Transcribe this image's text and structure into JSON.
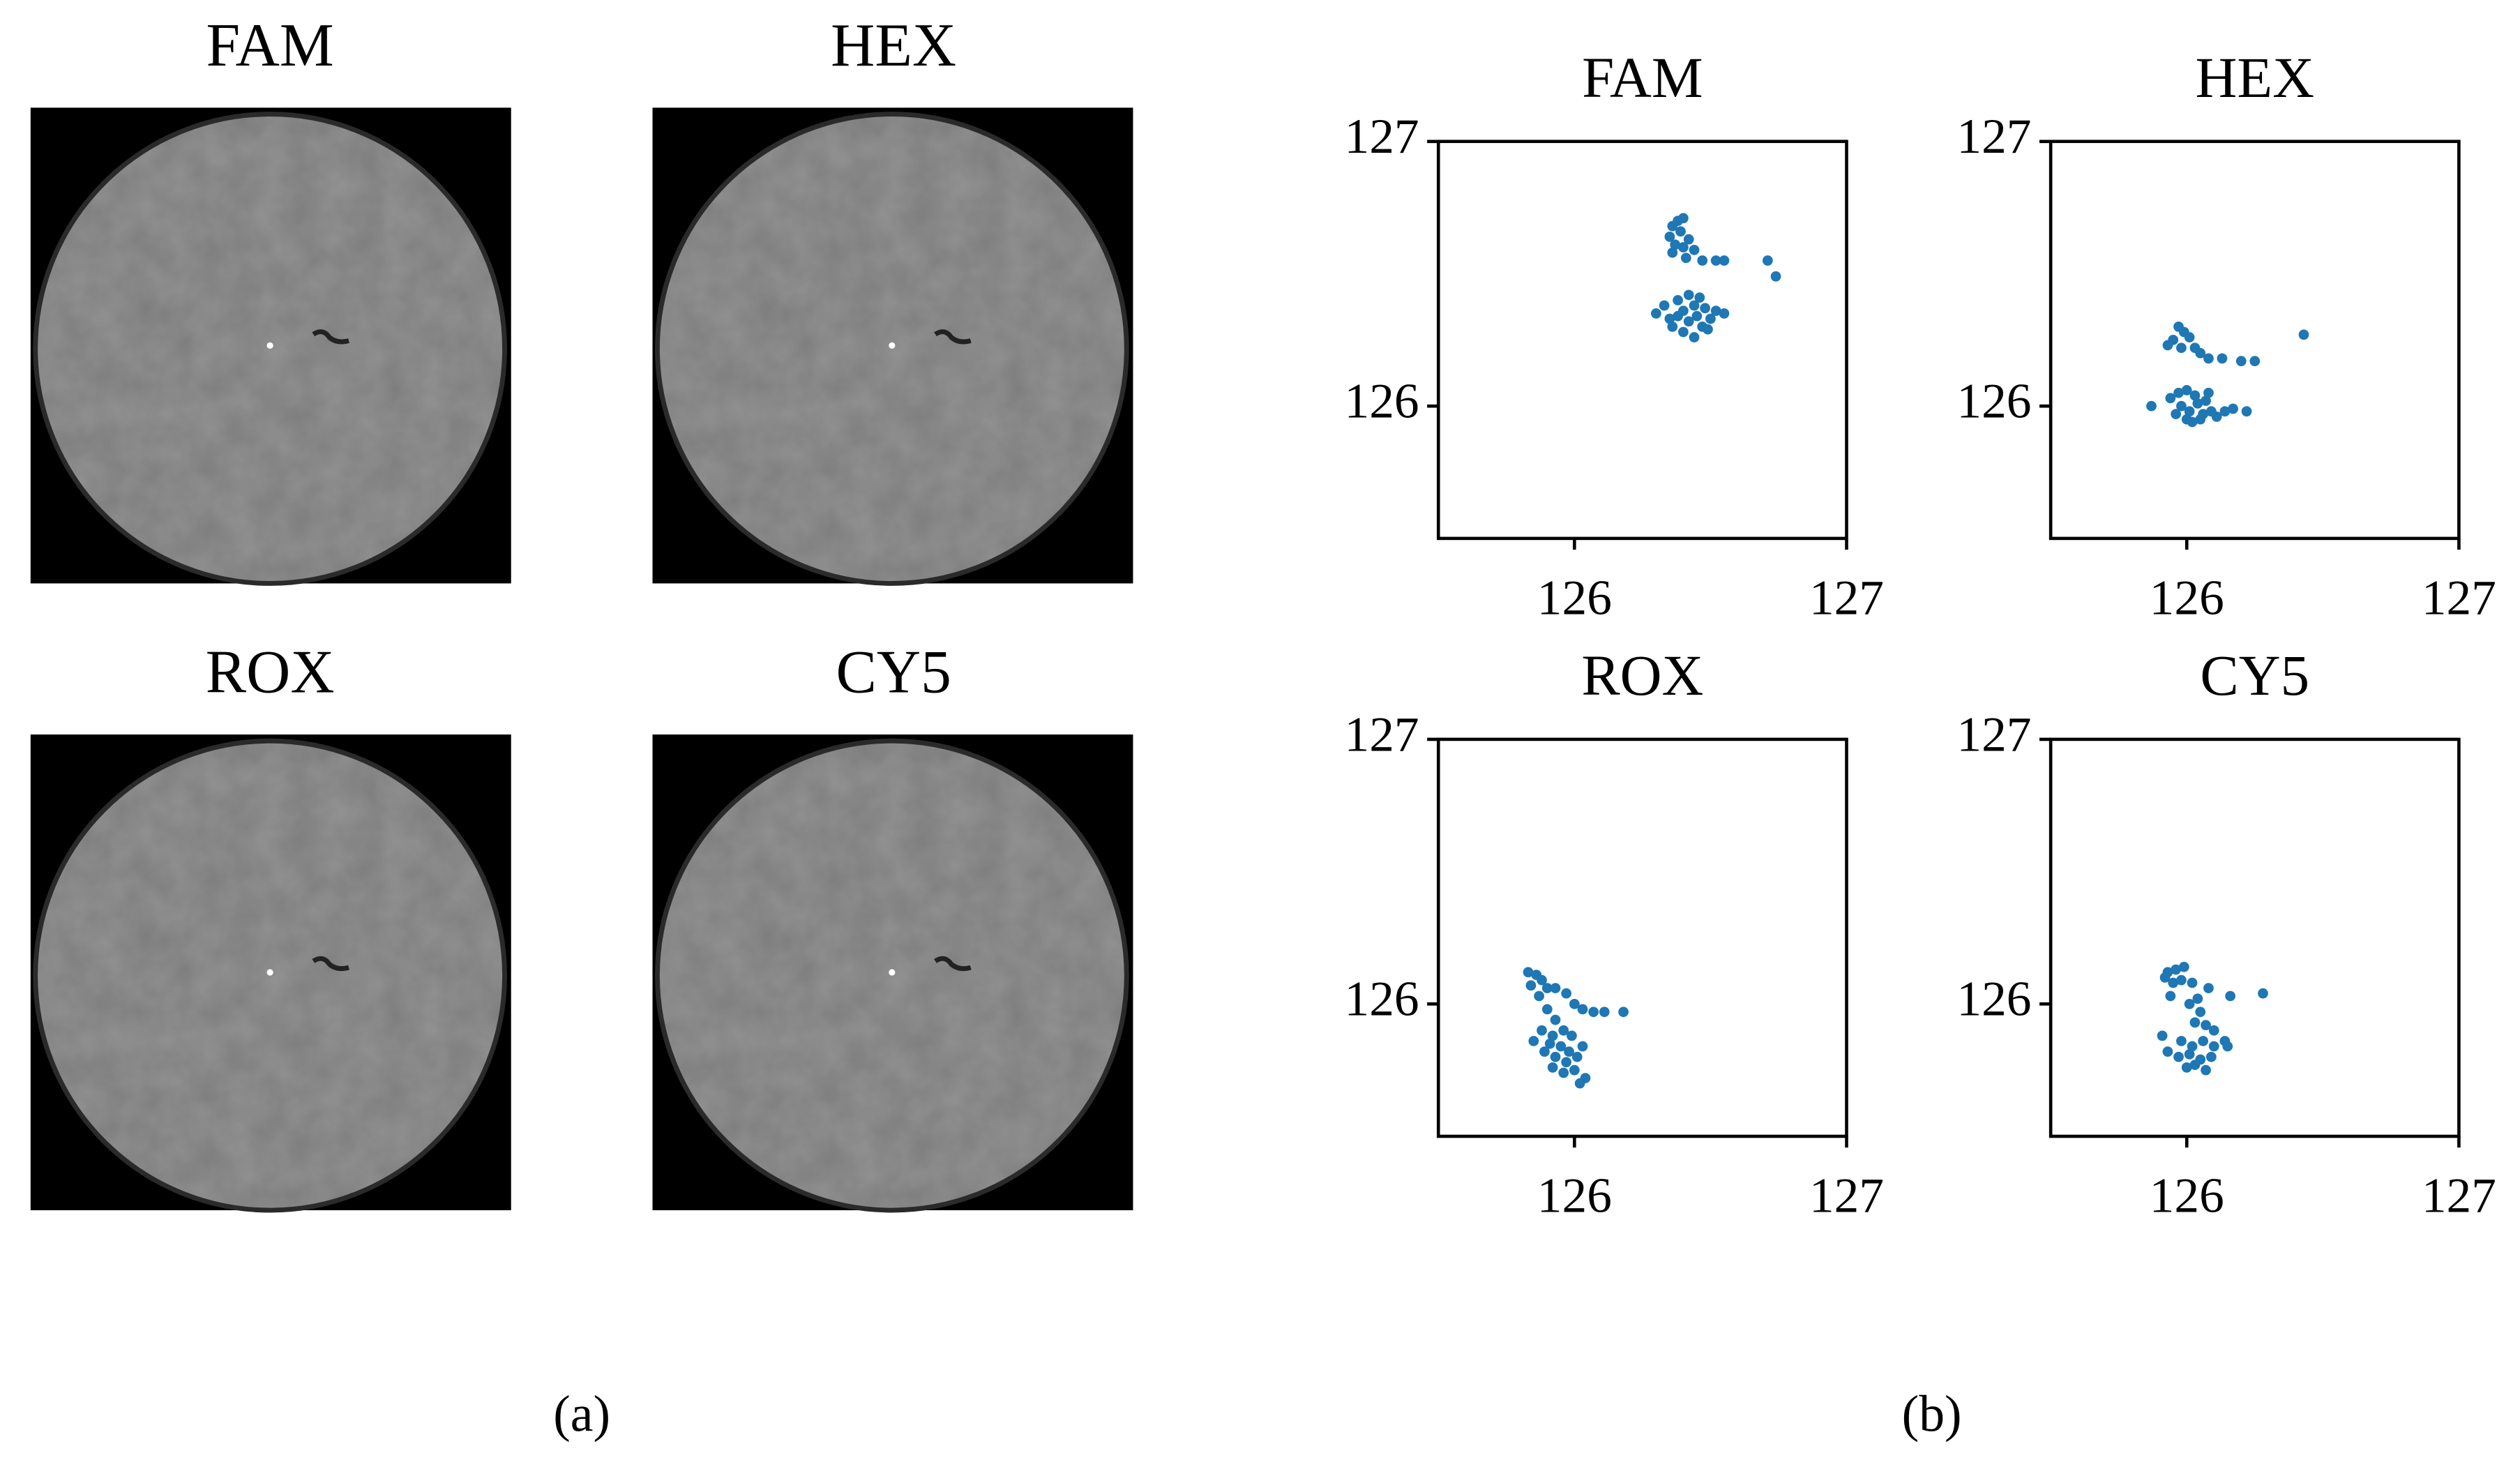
{
  "images": [
    {
      "title": "FAM"
    },
    {
      "title": "HEX"
    },
    {
      "title": "ROX"
    },
    {
      "title": "CY5"
    }
  ],
  "panel_labels": [
    "(a)",
    "(b)"
  ],
  "chart_data": [
    {
      "type": "scatter",
      "title": "FAM",
      "color": "#1f77b4",
      "xlim": [
        125.5,
        127
      ],
      "ylim": [
        125.5,
        127
      ],
      "xticks": [
        126,
        127
      ],
      "yticks": [
        126,
        127
      ],
      "x": [
        126.38,
        126.4,
        126.36,
        126.39,
        126.35,
        126.42,
        126.37,
        126.4,
        126.44,
        126.36,
        126.41,
        126.47,
        126.52,
        126.55,
        126.71,
        126.74,
        126.3,
        126.33,
        126.35,
        126.38,
        126.4,
        126.42,
        126.44,
        126.45,
        126.47,
        126.4,
        126.44,
        126.48,
        126.5,
        126.52,
        126.55,
        126.36,
        126.42,
        126.46,
        126.38,
        126.49
      ],
      "values": [
        126.7,
        126.71,
        126.68,
        126.66,
        126.64,
        126.63,
        126.61,
        126.6,
        126.59,
        126.58,
        126.56,
        126.55,
        126.55,
        126.55,
        126.55,
        126.49,
        126.35,
        126.38,
        126.33,
        126.4,
        126.36,
        126.32,
        126.38,
        126.34,
        126.3,
        126.28,
        126.26,
        126.37,
        126.33,
        126.36,
        126.35,
        126.3,
        126.42,
        126.41,
        126.34,
        126.29
      ]
    },
    {
      "type": "scatter",
      "title": "HEX",
      "color": "#1f77b4",
      "xlim": [
        125.5,
        127
      ],
      "ylim": [
        125.5,
        127
      ],
      "xticks": [
        126,
        127
      ],
      "yticks": [
        126,
        127
      ],
      "x": [
        125.97,
        125.99,
        125.95,
        126.01,
        125.93,
        125.98,
        126.03,
        126.05,
        126.08,
        126.13,
        126.2,
        126.25,
        126.43,
        125.87,
        125.94,
        125.97,
        126.0,
        126.03,
        125.98,
        126.01,
        126.04,
        126.06,
        125.96,
        126.0,
        126.07,
        126.09,
        126.11,
        126.14,
        126.02,
        126.05,
        126.17,
        126.22,
        126.08
      ],
      "values": [
        126.3,
        126.28,
        126.25,
        126.26,
        126.23,
        126.22,
        126.22,
        126.2,
        126.18,
        126.18,
        126.17,
        126.17,
        126.27,
        126.0,
        126.03,
        126.05,
        126.06,
        126.04,
        126.0,
        125.98,
        126.01,
        125.97,
        125.97,
        125.95,
        126.02,
        125.98,
        125.96,
        125.98,
        125.94,
        125.95,
        125.99,
        125.98,
        126.05
      ]
    },
    {
      "type": "scatter",
      "title": "ROX",
      "color": "#1f77b4",
      "xlim": [
        125.5,
        127
      ],
      "ylim": [
        125.5,
        127
      ],
      "xticks": [
        126,
        127
      ],
      "yticks": [
        126,
        127
      ],
      "x": [
        125.83,
        125.86,
        125.88,
        125.84,
        125.9,
        125.93,
        125.97,
        125.87,
        126.0,
        126.03,
        126.07,
        126.11,
        126.18,
        125.9,
        125.93,
        125.88,
        125.92,
        125.96,
        125.99,
        125.85,
        125.91,
        125.95,
        125.98,
        125.89,
        125.93,
        125.97,
        126.01,
        126.03,
        125.92,
        125.96,
        126.0,
        126.04,
        126.02
      ],
      "values": [
        126.12,
        126.11,
        126.09,
        126.07,
        126.06,
        126.06,
        126.04,
        126.03,
        126.0,
        125.98,
        125.97,
        125.97,
        125.97,
        125.98,
        125.94,
        125.9,
        125.88,
        125.9,
        125.88,
        125.86,
        125.85,
        125.84,
        125.82,
        125.82,
        125.8,
        125.78,
        125.8,
        125.84,
        125.76,
        125.74,
        125.75,
        125.72,
        125.7
      ]
    },
    {
      "type": "scatter",
      "title": "CY5",
      "color": "#1f77b4",
      "xlim": [
        125.5,
        127
      ],
      "ylim": [
        125.5,
        127
      ],
      "xticks": [
        126,
        127
      ],
      "yticks": [
        126,
        127
      ],
      "x": [
        125.93,
        125.96,
        125.99,
        125.92,
        125.95,
        125.98,
        126.02,
        126.08,
        126.16,
        126.28,
        125.94,
        126.04,
        126.01,
        126.05,
        126.03,
        126.07,
        126.1,
        125.91,
        125.98,
        126.02,
        126.06,
        126.1,
        126.14,
        125.93,
        125.97,
        126.01,
        126.05,
        126.09,
        126.03,
        126.07,
        126.0,
        126.15
      ],
      "values": [
        126.12,
        126.13,
        126.14,
        126.1,
        126.08,
        126.09,
        126.08,
        126.06,
        126.03,
        126.04,
        126.03,
        126.02,
        126.0,
        125.97,
        125.93,
        125.92,
        125.9,
        125.88,
        125.86,
        125.84,
        125.86,
        125.84,
        125.86,
        125.82,
        125.8,
        125.81,
        125.79,
        125.8,
        125.77,
        125.75,
        125.76,
        125.84
      ]
    }
  ]
}
